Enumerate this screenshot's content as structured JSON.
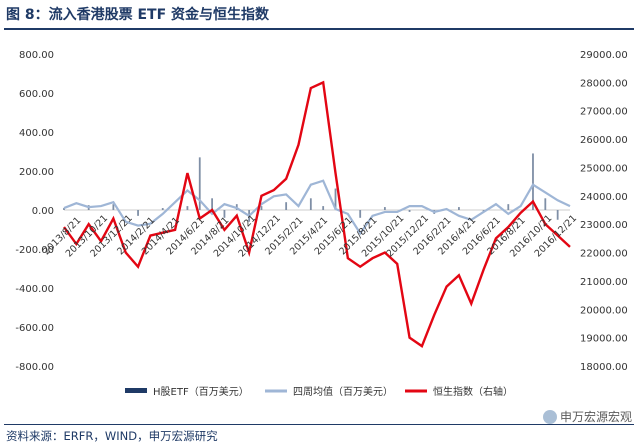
{
  "title": "图 8：流入香港股票 ETF 资金与恒生指数",
  "source": "资料来源：ERFR，WIND，申万宏源研究",
  "watermark": "申万宏源宏观",
  "colors": {
    "bars": "#1f3a66",
    "avg_line": "#9fb6d6",
    "index_line": "#e30613",
    "text": "#1f3a66"
  },
  "chart_data": {
    "type": "bar+line",
    "x_tick_labels": [
      "2013/8/21",
      "2013/10/21",
      "2013/12/21",
      "2014/2/21",
      "2014/4/21",
      "2014/6/21",
      "2014/8/21",
      "2014/10/21",
      "2014/12/21",
      "2015/2/21",
      "2015/4/21",
      "2015/6/21",
      "2015/8/21",
      "2015/10/21",
      "2015/12/21",
      "2016/2/21",
      "2016/4/21",
      "2016/6/21",
      "2016/8/21",
      "2016/10/21",
      "2016/12/21"
    ],
    "y_left": {
      "ticks": [
        "800.00",
        "600.00",
        "400.00",
        "200.00",
        "0.00",
        "-200.00",
        "-400.00",
        "-600.00",
        "-800.00"
      ],
      "ylim": [
        -800,
        800
      ]
    },
    "y_right": {
      "ticks": [
        "29000.00",
        "28000.00",
        "27000.00",
        "26000.00",
        "25000.00",
        "24000.00",
        "23000.00",
        "22000.00",
        "21000.00",
        "20000.00",
        "19000.00",
        "18000.00"
      ],
      "ylim": [
        18000,
        29000
      ]
    },
    "legend": [
      "H股ETF（百万美元）",
      "四周均值（百万美元）",
      "恒生指数（右轴）"
    ],
    "legend_position": "bottom",
    "series": [
      {
        "name": "四周均值（百万美元）",
        "axis": "left",
        "x": [
          0,
          0.5,
          1,
          1.5,
          2,
          2.5,
          3,
          3.5,
          4,
          4.5,
          5,
          5.5,
          6,
          6.5,
          7,
          7.5,
          8,
          8.5,
          9,
          9.5,
          10,
          10.5,
          11,
          11.5,
          12,
          12.5,
          13,
          13.5,
          14,
          14.5,
          15,
          15.5,
          16,
          16.5,
          17,
          17.5,
          18,
          18.5,
          19,
          19.5,
          20,
          20.5
        ],
        "values": [
          10,
          35,
          15,
          20,
          40,
          -60,
          -80,
          -70,
          -20,
          40,
          100,
          50,
          -20,
          30,
          10,
          -30,
          30,
          70,
          80,
          20,
          130,
          150,
          5,
          -20,
          -120,
          -30,
          -10,
          -10,
          20,
          20,
          -10,
          5,
          -30,
          -50,
          -10,
          30,
          -20,
          20,
          130,
          90,
          50,
          20
        ]
      },
      {
        "name": "恒生指数（右轴）",
        "axis": "right",
        "x": [
          0,
          0.5,
          1,
          1.5,
          2,
          2.5,
          3,
          3.5,
          4,
          4.5,
          5,
          5.5,
          6,
          6.5,
          7,
          7.5,
          8,
          8.5,
          9,
          9.5,
          10,
          10.5,
          11,
          11.5,
          12,
          12.5,
          13,
          13.5,
          14,
          14.5,
          15,
          15.5,
          16,
          16.5,
          17,
          17.5,
          18,
          18.5,
          19,
          19.5,
          20,
          20.5
        ],
        "values": [
          22900,
          22300,
          23000,
          22400,
          23200,
          22000,
          21500,
          22600,
          22700,
          22800,
          24800,
          23200,
          23500,
          22800,
          23300,
          22000,
          24000,
          24200,
          24600,
          25800,
          27800,
          28000,
          24800,
          21800,
          21500,
          21800,
          22000,
          21600,
          19000,
          18700,
          19800,
          20800,
          21200,
          20200,
          21400,
          22500,
          22900,
          23400,
          23800,
          23000,
          22600,
          22200
        ]
      },
      {
        "name": "H股ETF（百万美元）",
        "axis": "left",
        "x": [
          0,
          1,
          2,
          3,
          4,
          5,
          5.5,
          6,
          6.5,
          7,
          7.5,
          8,
          9,
          10,
          10.5,
          11,
          12,
          13,
          14,
          15,
          16,
          17,
          18,
          19,
          19.5,
          20
        ],
        "values": [
          10,
          25,
          30,
          -30,
          10,
          20,
          270,
          60,
          -40,
          30,
          -60,
          20,
          40,
          60,
          20,
          110,
          -40,
          15,
          -10,
          -20,
          15,
          -10,
          30,
          290,
          60,
          -50
        ]
      }
    ]
  }
}
